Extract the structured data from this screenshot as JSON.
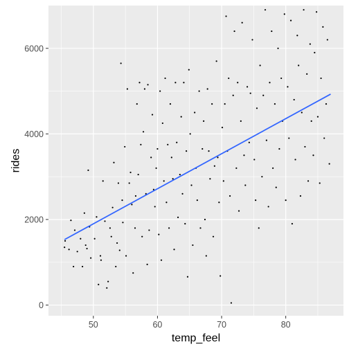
{
  "chart_data": {
    "type": "scatter",
    "title": "",
    "xlabel": "temp_feel",
    "ylabel": "rides",
    "xlim": [
      43.0,
      89.0
    ],
    "ylim": [
      -250,
      7000
    ],
    "x_ticks": [
      50,
      60,
      70,
      80
    ],
    "y_ticks": [
      0,
      2000,
      4000,
      6000
    ],
    "grid": true,
    "legend": "none",
    "colors": {
      "panel": "#ebebeb",
      "grid": "#ffffff",
      "points": "#000000",
      "fit_line": "#3366ff",
      "tick_text": "#4d4d4d"
    },
    "fit_line": {
      "x": [
        45.5,
        87.0
      ],
      "y": [
        1530,
        4930
      ]
    },
    "points": [
      [
        45.5,
        1350
      ],
      [
        45.6,
        1500
      ],
      [
        46.2,
        1300
      ],
      [
        46.5,
        1980
      ],
      [
        46.9,
        900
      ],
      [
        47.1,
        1750
      ],
      [
        47.5,
        1250
      ],
      [
        48.0,
        1550
      ],
      [
        48.3,
        900
      ],
      [
        48.6,
        2150
      ],
      [
        48.8,
        1400
      ],
      [
        49.0,
        1320
      ],
      [
        49.2,
        3150
      ],
      [
        49.4,
        1830
      ],
      [
        49.6,
        1100
      ],
      [
        50.2,
        1550
      ],
      [
        50.5,
        2060
      ],
      [
        50.8,
        480
      ],
      [
        51.1,
        1150
      ],
      [
        51.2,
        1050
      ],
      [
        51.5,
        2900
      ],
      [
        51.8,
        1960
      ],
      [
        52.1,
        400
      ],
      [
        52.3,
        550
      ],
      [
        52.6,
        1800
      ],
      [
        52.8,
        1600
      ],
      [
        53.0,
        2280
      ],
      [
        53.2,
        3330
      ],
      [
        53.5,
        900
      ],
      [
        53.7,
        1450
      ],
      [
        53.9,
        2850
      ],
      [
        54.1,
        1280
      ],
      [
        54.3,
        5650
      ],
      [
        54.5,
        2450
      ],
      [
        54.6,
        1930
      ],
      [
        54.9,
        3700
      ],
      [
        55.1,
        1150
      ],
      [
        55.3,
        5050
      ],
      [
        55.6,
        2850
      ],
      [
        55.8,
        3100
      ],
      [
        56.0,
        2350
      ],
      [
        56.2,
        750
      ],
      [
        56.5,
        1800
      ],
      [
        56.6,
        2550
      ],
      [
        56.8,
        4700
      ],
      [
        57.0,
        3050
      ],
      [
        57.2,
        5200
      ],
      [
        57.4,
        3750
      ],
      [
        57.6,
        1600
      ],
      [
        57.8,
        4050
      ],
      [
        58.0,
        5050
      ],
      [
        58.2,
        2600
      ],
      [
        58.4,
        950
      ],
      [
        58.5,
        5150
      ],
      [
        58.7,
        1750
      ],
      [
        59.0,
        3450
      ],
      [
        59.2,
        4450
      ],
      [
        59.4,
        2700
      ],
      [
        59.6,
        2300
      ],
      [
        59.8,
        3200
      ],
      [
        60.0,
        3650
      ],
      [
        60.2,
        1650
      ],
      [
        60.4,
        5000
      ],
      [
        60.6,
        1050
      ],
      [
        60.8,
        4250
      ],
      [
        61.0,
        2900
      ],
      [
        61.2,
        5300
      ],
      [
        61.4,
        2400
      ],
      [
        61.6,
        3750
      ],
      [
        61.8,
        1800
      ],
      [
        62.0,
        4700
      ],
      [
        62.2,
        3450
      ],
      [
        62.4,
        2950
      ],
      [
        62.6,
        1300
      ],
      [
        62.8,
        5200
      ],
      [
        63.0,
        3800
      ],
      [
        63.2,
        2050
      ],
      [
        63.5,
        3050
      ],
      [
        63.7,
        4400
      ],
      [
        63.9,
        2600
      ],
      [
        64.1,
        5200
      ],
      [
        64.3,
        1900
      ],
      [
        64.5,
        3600
      ],
      [
        64.7,
        660
      ],
      [
        64.9,
        5500
      ],
      [
        65.1,
        4000
      ],
      [
        65.3,
        2800
      ],
      [
        65.5,
        1400
      ],
      [
        65.8,
        4500
      ],
      [
        66.0,
        3200
      ],
      [
        66.2,
        2450
      ],
      [
        66.5,
        5000
      ],
      [
        66.7,
        1800
      ],
      [
        67.0,
        3650
      ],
      [
        67.2,
        4300
      ],
      [
        67.4,
        2000
      ],
      [
        67.6,
        1150
      ],
      [
        67.8,
        5050
      ],
      [
        68.0,
        3600
      ],
      [
        68.2,
        2950
      ],
      [
        68.5,
        4700
      ],
      [
        68.7,
        1600
      ],
      [
        68.9,
        3250
      ],
      [
        69.2,
        5700
      ],
      [
        69.4,
        3450
      ],
      [
        69.6,
        2400
      ],
      [
        69.8,
        680
      ],
      [
        70.1,
        4150
      ],
      [
        70.3,
        2900
      ],
      [
        70.5,
        4700
      ],
      [
        70.7,
        6750
      ],
      [
        70.9,
        3600
      ],
      [
        71.1,
        5300
      ],
      [
        71.3,
        2550
      ],
      [
        71.5,
        50
      ],
      [
        71.8,
        4900
      ],
      [
        72.0,
        6400
      ],
      [
        72.3,
        3200
      ],
      [
        72.5,
        5200
      ],
      [
        72.7,
        2200
      ],
      [
        73.0,
        4300
      ],
      [
        73.2,
        6600
      ],
      [
        73.5,
        3500
      ],
      [
        73.7,
        2800
      ],
      [
        74.0,
        5100
      ],
      [
        74.3,
        3800
      ],
      [
        74.5,
        4950
      ],
      [
        74.8,
        6200
      ],
      [
        75.1,
        3400
      ],
      [
        75.3,
        2450
      ],
      [
        75.5,
        4600
      ],
      [
        75.8,
        1800
      ],
      [
        76.0,
        5600
      ],
      [
        76.3,
        3000
      ],
      [
        76.5,
        4900
      ],
      [
        76.8,
        6900
      ],
      [
        77.0,
        3850
      ],
      [
        77.3,
        2300
      ],
      [
        77.5,
        5200
      ],
      [
        77.8,
        6400
      ],
      [
        78.0,
        3200
      ],
      [
        78.3,
        4700
      ],
      [
        78.5,
        2750
      ],
      [
        78.8,
        6000
      ],
      [
        79.0,
        3650
      ],
      [
        79.3,
        5300
      ],
      [
        79.5,
        4300
      ],
      [
        79.8,
        6800
      ],
      [
        80.0,
        2450
      ],
      [
        80.3,
        5100
      ],
      [
        80.5,
        3900
      ],
      [
        80.8,
        6650
      ],
      [
        81.0,
        1900
      ],
      [
        81.3,
        4800
      ],
      [
        81.5,
        3400
      ],
      [
        81.8,
        6300
      ],
      [
        82.0,
        5600
      ],
      [
        82.3,
        2550
      ],
      [
        82.5,
        4500
      ],
      [
        82.8,
        6900
      ],
      [
        83.0,
        3700
      ],
      [
        83.3,
        5400
      ],
      [
        83.5,
        2900
      ],
      [
        83.8,
        6100
      ],
      [
        84.0,
        4300
      ],
      [
        84.3,
        3500
      ],
      [
        84.5,
        5900
      ],
      [
        84.8,
        6850
      ],
      [
        85.0,
        4400
      ],
      [
        85.3,
        2850
      ],
      [
        85.5,
        5300
      ],
      [
        85.8,
        6500
      ],
      [
        86.0,
        3900
      ],
      [
        86.3,
        4700
      ],
      [
        86.5,
        6200
      ],
      [
        86.8,
        3300
      ]
    ]
  }
}
